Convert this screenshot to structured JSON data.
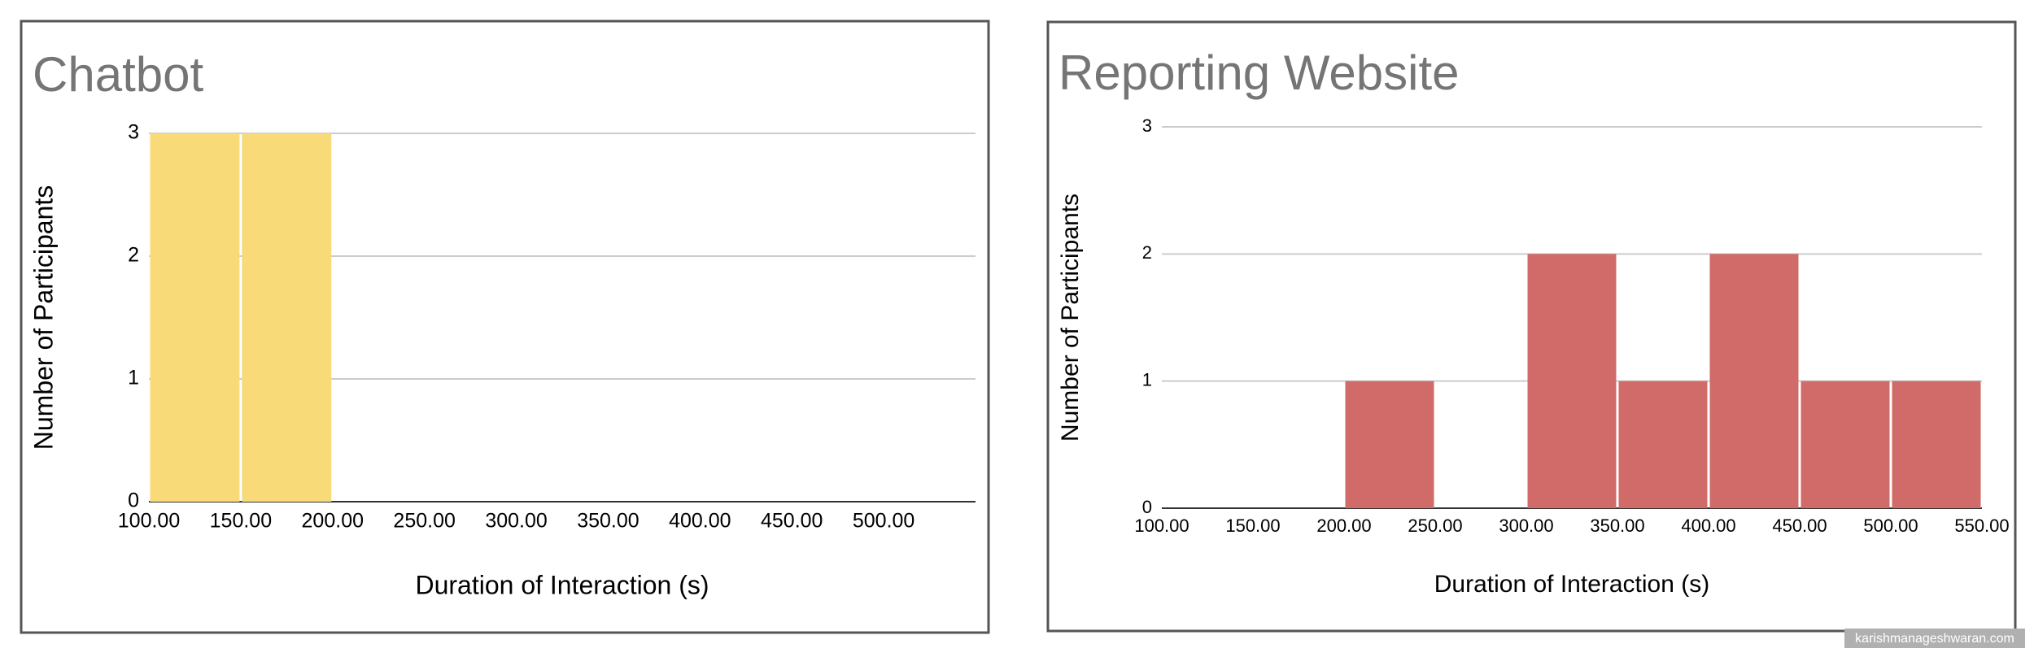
{
  "chart_data": [
    {
      "type": "histogram",
      "title": "Chatbot",
      "x_label": "Duration of Interaction (s)",
      "y_label": "Number of Participants",
      "bins": [
        100,
        150,
        200
      ],
      "values": [
        3,
        3
      ],
      "color": "#f8da78",
      "xlim": [
        100,
        550
      ],
      "xticks": [
        {
          "value": 100,
          "label": "100.00"
        },
        {
          "value": 150,
          "label": "150.00"
        },
        {
          "value": 200,
          "label": "200.00"
        },
        {
          "value": 250,
          "label": "250.00"
        },
        {
          "value": 300,
          "label": "300.00"
        },
        {
          "value": 350,
          "label": "350.00"
        },
        {
          "value": 400,
          "label": "400.00"
        },
        {
          "value": 450,
          "label": "450.00"
        },
        {
          "value": 500,
          "label": "500.00"
        }
      ],
      "ylim": [
        0,
        3
      ],
      "yticks": [
        0,
        1,
        2,
        3
      ],
      "grid": true
    },
    {
      "type": "histogram",
      "title": "Reporting Website",
      "x_label": "Duration of Interaction (s)",
      "y_label": "Number of Participants",
      "bins": [
        100,
        150,
        200,
        250,
        300,
        350,
        400,
        450,
        500,
        550
      ],
      "values": [
        0,
        0,
        1,
        0,
        2,
        1,
        2,
        1,
        1
      ],
      "color": "#d06b69",
      "xlim": [
        100,
        550
      ],
      "xticks": [
        {
          "value": 100,
          "label": "100.00"
        },
        {
          "value": 150,
          "label": "150.00"
        },
        {
          "value": 200,
          "label": "200.00"
        },
        {
          "value": 250,
          "label": "250.00"
        },
        {
          "value": 300,
          "label": "300.00"
        },
        {
          "value": 350,
          "label": "350.00"
        },
        {
          "value": 400,
          "label": "400.00"
        },
        {
          "value": 450,
          "label": "450.00"
        },
        {
          "value": 500,
          "label": "500.00"
        },
        {
          "value": 550,
          "label": "550.00"
        }
      ],
      "ylim": [
        0,
        3
      ],
      "yticks": [
        0,
        1,
        2,
        3
      ],
      "grid": true
    }
  ],
  "watermark": "karishmanageshwaran.com"
}
